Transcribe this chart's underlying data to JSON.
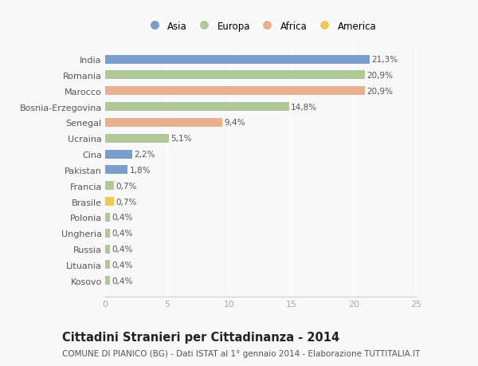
{
  "categories": [
    "Kosovo",
    "Lituania",
    "Russia",
    "Ungheria",
    "Polonia",
    "Brasile",
    "Francia",
    "Pakistan",
    "Cina",
    "Ucraina",
    "Senegal",
    "Bosnia-Erzegovina",
    "Marocco",
    "Romania",
    "India"
  ],
  "values": [
    0.4,
    0.4,
    0.4,
    0.4,
    0.4,
    0.7,
    0.7,
    1.8,
    2.2,
    5.1,
    9.4,
    14.8,
    20.9,
    20.9,
    21.3
  ],
  "continents": [
    "Europa",
    "Europa",
    "Europa",
    "Europa",
    "Europa",
    "America",
    "Europa",
    "Asia",
    "Asia",
    "Europa",
    "Africa",
    "Europa",
    "Africa",
    "Europa",
    "Asia"
  ],
  "labels": [
    "0,4%",
    "0,4%",
    "0,4%",
    "0,4%",
    "0,4%",
    "0,7%",
    "0,7%",
    "1,8%",
    "2,2%",
    "5,1%",
    "9,4%",
    "14,8%",
    "20,9%",
    "20,9%",
    "21,3%"
  ],
  "continent_colors": {
    "Asia": "#7b9dc9",
    "Europa": "#b0c898",
    "Africa": "#e8b090",
    "America": "#f0c85a"
  },
  "legend_order": [
    "Asia",
    "Europa",
    "Africa",
    "America"
  ],
  "title": "Cittadini Stranieri per Cittadinanza - 2014",
  "subtitle": "COMUNE DI PIANICO (BG) - Dati ISTAT al 1° gennaio 2014 - Elaborazione TUTTITALIA.IT",
  "xlim": [
    0,
    25
  ],
  "xticks": [
    0,
    5,
    10,
    15,
    20,
    25
  ],
  "background_color": "#f8f8f8",
  "grid_color": "#ffffff",
  "bar_height": 0.55,
  "title_fontsize": 10.5,
  "subtitle_fontsize": 7.5,
  "axis_fontsize": 8,
  "label_fontsize": 7.5
}
